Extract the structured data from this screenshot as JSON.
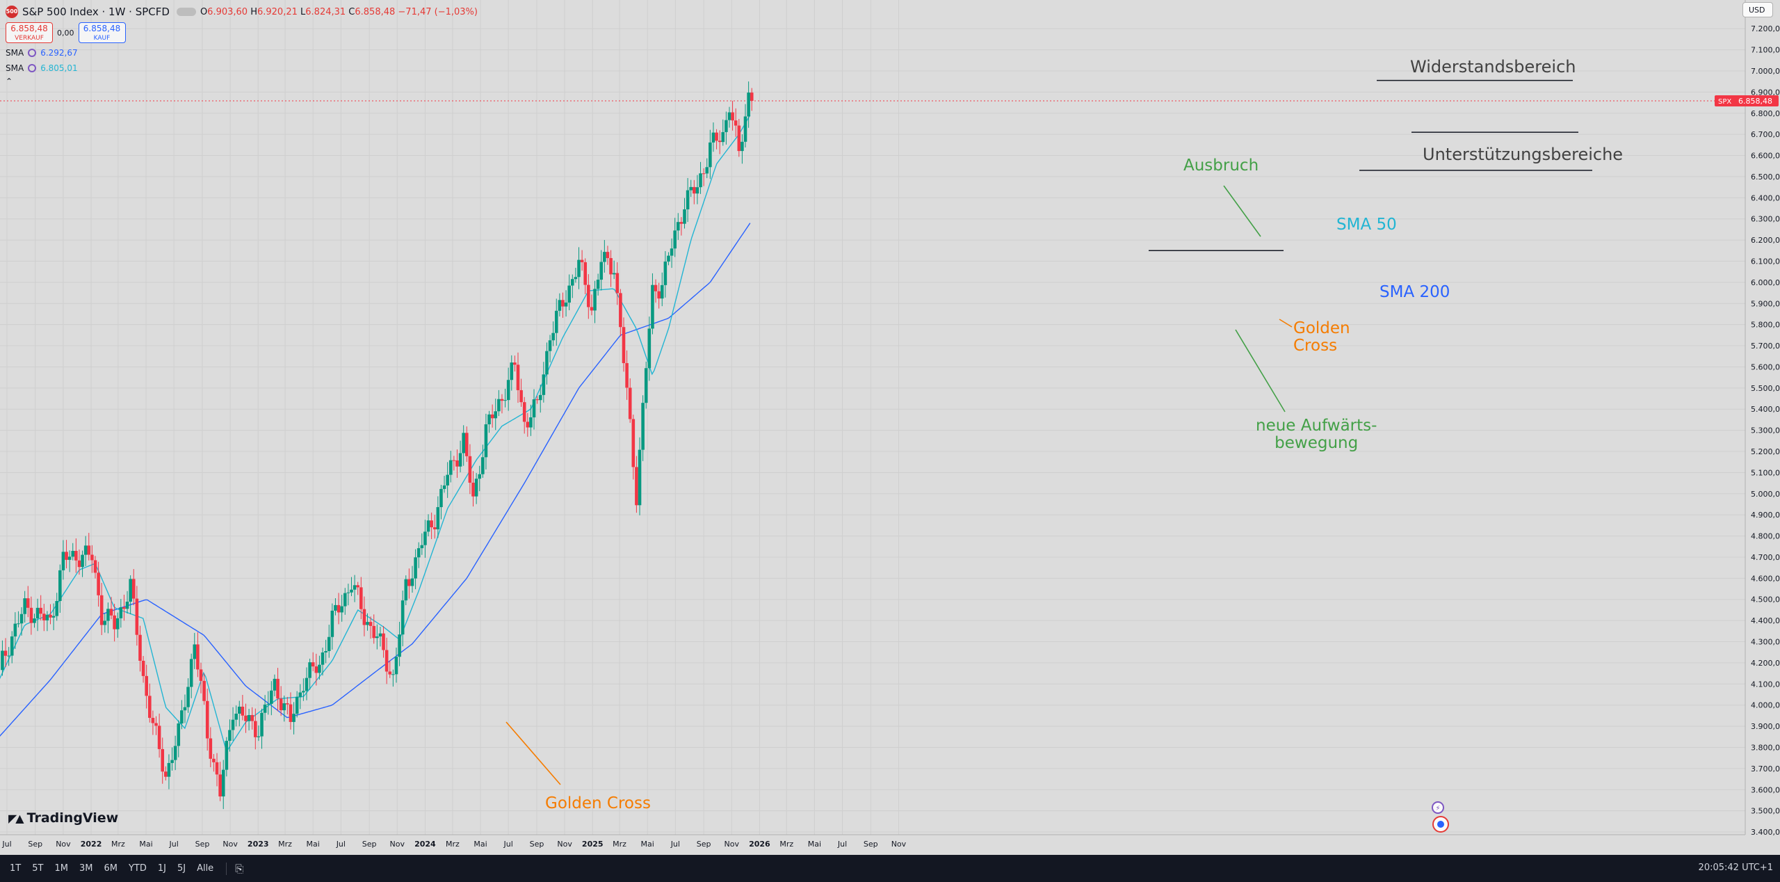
{
  "header": {
    "symbol_badge": "500",
    "title": "S&P 500 Index · 1W · SPCFD",
    "open_label": "O",
    "open": "6.903,60",
    "high_label": "H",
    "high": "6.920,21",
    "low_label": "L",
    "low": "6.824,31",
    "close_label": "C",
    "close": "6.858,48",
    "change": "−71,47 (−1,03%)",
    "sell_price": "6.858,48",
    "sell_label": "VERKAUF",
    "spread": "0,00",
    "buy_price": "6.858,48",
    "buy_label": "KAUF",
    "sma1_label": "SMA",
    "sma1_value": "6.292,67",
    "sma2_label": "SMA",
    "sma2_value": "6.805,01",
    "collapse_icon": "chevron-up-icon"
  },
  "currency": "USD",
  "price_tag": {
    "symbol": "SPX",
    "value": "6.858,48"
  },
  "logo": "TradingView",
  "bottom_bar": {
    "ranges": [
      "1T",
      "5T",
      "1M",
      "3M",
      "6M",
      "YTD",
      "1J",
      "5J",
      "Alle"
    ],
    "calendar_icon": "calendar-range-icon",
    "clock": "20:05:42 UTC+1"
  },
  "annotations": {
    "resistance": "Widerstandsbereich",
    "support": "Unterstützungsbereiche",
    "breakout": "Ausbruch",
    "sma50": "SMA 50",
    "sma200": "SMA 200",
    "golden_cross_2025_line1": "Golden",
    "golden_cross_2025_line2": "Cross",
    "upmove_line1": "neue Aufwärts-",
    "upmove_line2": "bewegung",
    "golden_cross_2023": "Golden Cross"
  },
  "colors": {
    "up": "#089981",
    "down": "#f23645",
    "sma_fast": "#22b5d3",
    "sma_slow": "#2962ff",
    "annotation_green": "#43a047",
    "annotation_orange": "#f57c00",
    "annotation_cyan": "#22b5d3",
    "annotation_blue": "#2962ff"
  },
  "chart_data": {
    "type": "candlestick",
    "interval": "1W",
    "y_axis": {
      "range": [
        3400,
        7300
      ],
      "ticks": [
        "7.200,00",
        "7.100,00",
        "7.000,00",
        "6.900,00",
        "6.800,00",
        "6.700,00",
        "6.600,00",
        "6.500,00",
        "6.400,00",
        "6.300,00",
        "6.200,00",
        "6.100,00",
        "6.000,00",
        "5.900,00",
        "5.800,00",
        "5.700,00",
        "5.600,00",
        "5.500,00",
        "5.400,00",
        "5.300,00",
        "5.200,00",
        "5.100,00",
        "5.000,00",
        "4.900,00",
        "4.800,00",
        "4.700,00",
        "4.600,00",
        "4.500,00",
        "4.400,00",
        "4.300,00",
        "4.200,00",
        "4.100,00",
        "4.000,00",
        "3.900,00",
        "3.800,00",
        "3.700,00",
        "3.600,00",
        "3.500,00",
        "3.400,00"
      ]
    },
    "x_axis": {
      "ticks": [
        {
          "label": "Jul",
          "date": "2021-07-01",
          "bold": false
        },
        {
          "label": "Sep",
          "date": "2021-09-01",
          "bold": false
        },
        {
          "label": "Nov",
          "date": "2021-11-01",
          "bold": false
        },
        {
          "label": "2022",
          "date": "2022-01-01",
          "bold": true
        },
        {
          "label": "Mrz",
          "date": "2022-03-01",
          "bold": false
        },
        {
          "label": "Mai",
          "date": "2022-05-01",
          "bold": false
        },
        {
          "label": "Jul",
          "date": "2022-07-01",
          "bold": false
        },
        {
          "label": "Sep",
          "date": "2022-09-01",
          "bold": false
        },
        {
          "label": "Nov",
          "date": "2022-11-01",
          "bold": false
        },
        {
          "label": "2023",
          "date": "2023-01-01",
          "bold": true
        },
        {
          "label": "Mrz",
          "date": "2023-03-01",
          "bold": false
        },
        {
          "label": "Mai",
          "date": "2023-05-01",
          "bold": false
        },
        {
          "label": "Jul",
          "date": "2023-07-01",
          "bold": false
        },
        {
          "label": "Sep",
          "date": "2023-09-01",
          "bold": false
        },
        {
          "label": "Nov",
          "date": "2023-11-01",
          "bold": false
        },
        {
          "label": "2024",
          "date": "2024-01-01",
          "bold": true
        },
        {
          "label": "Mrz",
          "date": "2024-03-01",
          "bold": false
        },
        {
          "label": "Mai",
          "date": "2024-05-01",
          "bold": false
        },
        {
          "label": "Jul",
          "date": "2024-07-01",
          "bold": false
        },
        {
          "label": "Sep",
          "date": "2024-09-01",
          "bold": false
        },
        {
          "label": "Nov",
          "date": "2024-11-01",
          "bold": false
        },
        {
          "label": "2025",
          "date": "2025-01-01",
          "bold": true
        },
        {
          "label": "Mrz",
          "date": "2025-03-01",
          "bold": false
        },
        {
          "label": "Mai",
          "date": "2025-05-01",
          "bold": false
        },
        {
          "label": "Jul",
          "date": "2025-07-01",
          "bold": false
        },
        {
          "label": "Sep",
          "date": "2025-09-01",
          "bold": false
        },
        {
          "label": "Nov",
          "date": "2025-11-01",
          "bold": false
        },
        {
          "label": "2026",
          "date": "2026-01-01",
          "bold": true
        },
        {
          "label": "Mrz",
          "date": "2026-03-01",
          "bold": false
        },
        {
          "label": "Mai",
          "date": "2026-05-01",
          "bold": false
        },
        {
          "label": "Jul",
          "date": "2026-07-01",
          "bold": false
        },
        {
          "label": "Sep",
          "date": "2026-09-01",
          "bold": false
        },
        {
          "label": "Nov",
          "date": "2026-11-01",
          "bold": false
        }
      ]
    },
    "last_price": 6858.48,
    "series_close": [
      {
        "date": "2021-06-14",
        "v": 4166
      },
      {
        "date": "2021-07-12",
        "v": 4330
      },
      {
        "date": "2021-08-09",
        "v": 4460
      },
      {
        "date": "2021-09-06",
        "v": 4430
      },
      {
        "date": "2021-10-04",
        "v": 4390
      },
      {
        "date": "2021-11-01",
        "v": 4690
      },
      {
        "date": "2021-12-06",
        "v": 4710
      },
      {
        "date": "2022-01-03",
        "v": 4700
      },
      {
        "date": "2022-01-24",
        "v": 4430
      },
      {
        "date": "2022-02-21",
        "v": 4380
      },
      {
        "date": "2022-03-28",
        "v": 4560
      },
      {
        "date": "2022-04-25",
        "v": 4130
      },
      {
        "date": "2022-05-16",
        "v": 3900
      },
      {
        "date": "2022-06-13",
        "v": 3670
      },
      {
        "date": "2022-07-11",
        "v": 3860
      },
      {
        "date": "2022-08-15",
        "v": 4290
      },
      {
        "date": "2022-09-12",
        "v": 3870
      },
      {
        "date": "2022-10-10",
        "v": 3580
      },
      {
        "date": "2022-11-07",
        "v": 3990
      },
      {
        "date": "2022-12-05",
        "v": 3930
      },
      {
        "date": "2023-01-02",
        "v": 3890
      },
      {
        "date": "2023-02-06",
        "v": 4100
      },
      {
        "date": "2023-03-13",
        "v": 3920
      },
      {
        "date": "2023-04-10",
        "v": 4120
      },
      {
        "date": "2023-05-15",
        "v": 4190
      },
      {
        "date": "2023-06-12",
        "v": 4400
      },
      {
        "date": "2023-07-24",
        "v": 4580
      },
      {
        "date": "2023-08-21",
        "v": 4420
      },
      {
        "date": "2023-09-18",
        "v": 4320
      },
      {
        "date": "2023-10-23",
        "v": 4130
      },
      {
        "date": "2023-11-20",
        "v": 4560
      },
      {
        "date": "2023-12-25",
        "v": 4770
      },
      {
        "date": "2024-01-22",
        "v": 4890
      },
      {
        "date": "2024-02-19",
        "v": 5090
      },
      {
        "date": "2024-03-25",
        "v": 5250
      },
      {
        "date": "2024-04-15",
        "v": 4970
      },
      {
        "date": "2024-05-13",
        "v": 5300
      },
      {
        "date": "2024-06-17",
        "v": 5460
      },
      {
        "date": "2024-07-15",
        "v": 5600
      },
      {
        "date": "2024-08-05",
        "v": 5340
      },
      {
        "date": "2024-09-02",
        "v": 5410
      },
      {
        "date": "2024-09-30",
        "v": 5750
      },
      {
        "date": "2024-11-11",
        "v": 5980
      },
      {
        "date": "2024-12-02",
        "v": 6090
      },
      {
        "date": "2024-12-30",
        "v": 5880
      },
      {
        "date": "2025-01-20",
        "v": 6100
      },
      {
        "date": "2025-02-17",
        "v": 6080
      },
      {
        "date": "2025-03-10",
        "v": 5630
      },
      {
        "date": "2025-04-07",
        "v": 5000
      },
      {
        "date": "2025-04-28",
        "v": 5600
      },
      {
        "date": "2025-05-12",
        "v": 5950
      },
      {
        "date": "2025-06-02",
        "v": 6000
      },
      {
        "date": "2025-06-23",
        "v": 6170
      },
      {
        "date": "2025-07-21",
        "v": 6380
      },
      {
        "date": "2025-08-18",
        "v": 6450
      },
      {
        "date": "2025-09-15",
        "v": 6640
      },
      {
        "date": "2025-10-13",
        "v": 6700
      },
      {
        "date": "2025-10-27",
        "v": 6850
      },
      {
        "date": "2025-11-17",
        "v": 6600
      },
      {
        "date": "2025-12-08",
        "v": 6890
      },
      {
        "date": "2025-12-15",
        "v": 6858
      }
    ],
    "sma_fast": [
      {
        "date": "2021-06-14",
        "v": 4120
      },
      {
        "date": "2021-08-09",
        "v": 4380
      },
      {
        "date": "2021-10-04",
        "v": 4430
      },
      {
        "date": "2021-12-06",
        "v": 4640
      },
      {
        "date": "2022-01-10",
        "v": 4670
      },
      {
        "date": "2022-02-21",
        "v": 4460
      },
      {
        "date": "2022-04-25",
        "v": 4410
      },
      {
        "date": "2022-06-13",
        "v": 3990
      },
      {
        "date": "2022-07-25",
        "v": 3890
      },
      {
        "date": "2022-09-05",
        "v": 4160
      },
      {
        "date": "2022-10-24",
        "v": 3780
      },
      {
        "date": "2022-12-05",
        "v": 3920
      },
      {
        "date": "2023-02-13",
        "v": 4030
      },
      {
        "date": "2023-04-10",
        "v": 4040
      },
      {
        "date": "2023-06-12",
        "v": 4210
      },
      {
        "date": "2023-08-07",
        "v": 4450
      },
      {
        "date": "2023-10-02",
        "v": 4370
      },
      {
        "date": "2023-11-06",
        "v": 4310
      },
      {
        "date": "2023-12-18",
        "v": 4540
      },
      {
        "date": "2024-02-19",
        "v": 4930
      },
      {
        "date": "2024-04-22",
        "v": 5160
      },
      {
        "date": "2024-06-17",
        "v": 5320
      },
      {
        "date": "2024-08-19",
        "v": 5400
      },
      {
        "date": "2024-10-28",
        "v": 5740
      },
      {
        "date": "2024-12-23",
        "v": 5960
      },
      {
        "date": "2025-02-17",
        "v": 5970
      },
      {
        "date": "2025-04-07",
        "v": 5780
      },
      {
        "date": "2025-05-12",
        "v": 5560
      },
      {
        "date": "2025-06-16",
        "v": 5780
      },
      {
        "date": "2025-08-04",
        "v": 6200
      },
      {
        "date": "2025-09-29",
        "v": 6560
      },
      {
        "date": "2025-11-17",
        "v": 6700
      },
      {
        "date": "2025-12-15",
        "v": 6805
      }
    ],
    "sma_slow": [
      {
        "date": "2021-06-14",
        "v": 3850
      },
      {
        "date": "2021-10-04",
        "v": 4120
      },
      {
        "date": "2022-01-24",
        "v": 4430
      },
      {
        "date": "2022-05-02",
        "v": 4500
      },
      {
        "date": "2022-09-05",
        "v": 4330
      },
      {
        "date": "2022-12-05",
        "v": 4090
      },
      {
        "date": "2023-03-06",
        "v": 3940
      },
      {
        "date": "2023-06-12",
        "v": 4000
      },
      {
        "date": "2023-09-04",
        "v": 4140
      },
      {
        "date": "2023-12-04",
        "v": 4290
      },
      {
        "date": "2024-04-01",
        "v": 4600
      },
      {
        "date": "2024-08-05",
        "v": 5050
      },
      {
        "date": "2024-12-02",
        "v": 5500
      },
      {
        "date": "2025-03-03",
        "v": 5750
      },
      {
        "date": "2025-06-16",
        "v": 5830
      },
      {
        "date": "2025-09-15",
        "v": 6000
      },
      {
        "date": "2025-12-15",
        "v": 6292
      }
    ]
  }
}
